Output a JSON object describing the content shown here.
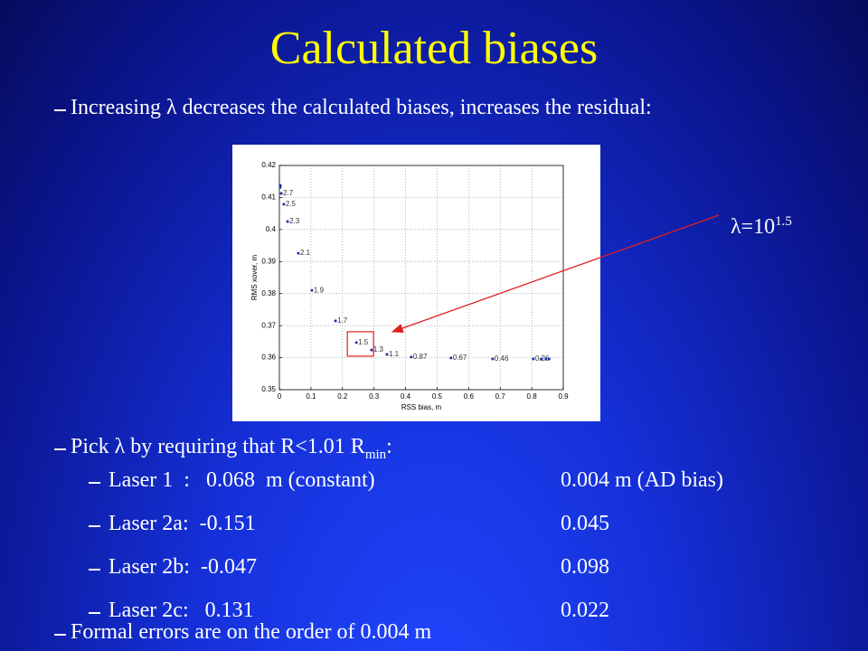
{
  "title": "Calculated biases",
  "bullets": [
    {
      "text": "Increasing λ decreases the calculated biases, increases the residual:"
    },
    {
      "text": "Pick λ by requiring that R<1.01 R",
      "subscript": "min",
      "suffix": ":"
    },
    {
      "text": "Formal errors are on the order of 0.004 m"
    }
  ],
  "table": {
    "rows": [
      [
        "Laser 1  :   0.068  m (constant)",
        "0.004 m (AD bias)"
      ],
      [
        "Laser 2a:  -0.151",
        "0.045"
      ],
      [
        "Laser 2b:  -0.047",
        "0.098"
      ],
      [
        "Laser 2c:   0.131",
        "0.022"
      ]
    ]
  },
  "annotation": {
    "text": "λ=10",
    "superscript": "1.5"
  },
  "chart_data": {
    "type": "scatter",
    "xlabel": "RSS bias, m",
    "ylabel": "RMS xover, m",
    "x": [
      0.003,
      0.003,
      0.006,
      0.014,
      0.026,
      0.06,
      0.103,
      0.178,
      0.244,
      0.292,
      0.341,
      0.418,
      0.544,
      0.676,
      0.805,
      0.83,
      0.845,
      0.855
    ],
    "y": [
      0.4138,
      0.4132,
      0.4113,
      0.4079,
      0.4025,
      0.3926,
      0.381,
      0.3715,
      0.3647,
      0.3624,
      0.361,
      0.3602,
      0.3599,
      0.3596,
      0.3596,
      0.3596,
      0.3596,
      0.3596
    ],
    "labels": [
      null,
      null,
      "2.7",
      "2.5",
      "2.3",
      "2.1",
      "1.9",
      "1.7",
      "1.5",
      "1.3",
      "1.1",
      "0.87",
      "0.67",
      "0.46",
      "0.26",
      null,
      null,
      null
    ],
    "color": "#1a2fb0",
    "xlim": [
      0,
      0.9
    ],
    "xticks": [
      0,
      0.1,
      0.2,
      0.3,
      0.4,
      0.5,
      0.6,
      0.7,
      0.8,
      0.9
    ],
    "ylim": [
      0.35,
      0.42
    ],
    "yticks": [
      0.35,
      0.36,
      0.37,
      0.38,
      0.39,
      0.4,
      0.41,
      0.42
    ],
    "grid": true
  }
}
